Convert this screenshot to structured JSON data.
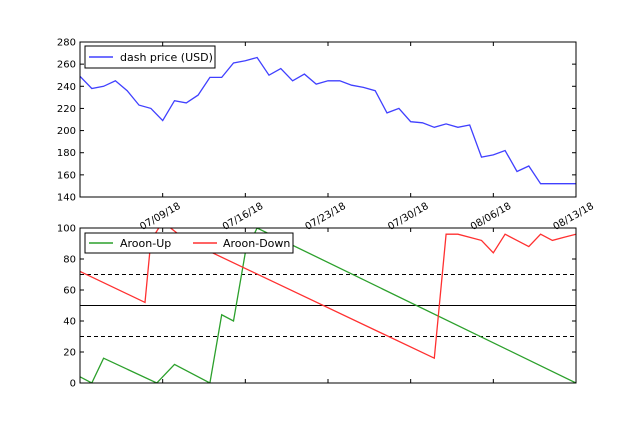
{
  "chart_data": [
    {
      "type": "line",
      "ylim": [
        140,
        280
      ],
      "yticks": [
        140,
        160,
        180,
        200,
        220,
        240,
        260,
        280
      ],
      "xlim": [
        "2018-07-02",
        "2018-08-13"
      ],
      "xticks": [
        "07/09/18",
        "07/16/18",
        "07/23/18",
        "07/30/18",
        "08/06/18",
        "08/13/18"
      ],
      "legend": "top-left",
      "grid": false,
      "series": [
        {
          "name": "dash price (USD)",
          "color": "#4040ff",
          "x": [
            "2018-07-02",
            "2018-07-03",
            "2018-07-04",
            "2018-07-05",
            "2018-07-06",
            "2018-07-07",
            "2018-07-08",
            "2018-07-09",
            "2018-07-10",
            "2018-07-11",
            "2018-07-12",
            "2018-07-13",
            "2018-07-14",
            "2018-07-15",
            "2018-07-16",
            "2018-07-17",
            "2018-07-18",
            "2018-07-19",
            "2018-07-20",
            "2018-07-21",
            "2018-07-22",
            "2018-07-23",
            "2018-07-24",
            "2018-07-25",
            "2018-07-26",
            "2018-07-27",
            "2018-07-28",
            "2018-07-29",
            "2018-07-30",
            "2018-07-31",
            "2018-08-01",
            "2018-08-02",
            "2018-08-03",
            "2018-08-04",
            "2018-08-05",
            "2018-08-06",
            "2018-08-07",
            "2018-08-08",
            "2018-08-09",
            "2018-08-10",
            "2018-08-11",
            "2018-08-12",
            "2018-08-13"
          ],
          "values": [
            249,
            238,
            240,
            245,
            236,
            223,
            220,
            209,
            227,
            225,
            232,
            248,
            248,
            261,
            263,
            266,
            250,
            256,
            245,
            251,
            242,
            245,
            245,
            241,
            239,
            236,
            216,
            220,
            208,
            207,
            203,
            206,
            203,
            205,
            176,
            178,
            182,
            163,
            168,
            152,
            152,
            152,
            152
          ]
        }
      ]
    },
    {
      "type": "line",
      "ylim": [
        0,
        100
      ],
      "yticks": [
        0,
        20,
        40,
        60,
        80,
        100
      ],
      "xlim": [
        "2018-07-02",
        "2018-08-13"
      ],
      "legend": "top-left",
      "grid": false,
      "reference_lines": [
        {
          "y": 70,
          "style": "dashed"
        },
        {
          "y": 50,
          "style": "solid"
        },
        {
          "y": 30,
          "style": "dashed"
        }
      ],
      "series": [
        {
          "name": "Aroon-Up",
          "color": "#2ca02c",
          "points": [
            [
              "2018-07-02",
              4
            ],
            [
              "2018-07-03",
              0
            ],
            [
              "2018-07-04",
              16
            ],
            [
              "2018-07-08.5",
              0
            ],
            [
              "2018-07-10",
              12
            ],
            [
              "2018-07-13",
              0
            ],
            [
              "2018-07-14",
              44
            ],
            [
              "2018-07-15",
              40
            ],
            [
              "2018-07-16",
              84
            ],
            [
              "2018-07-17",
              100
            ],
            [
              "2018-08-13",
              0
            ]
          ]
        },
        {
          "name": "Aroon-Down",
          "color": "#ff3030",
          "points": [
            [
              "2018-07-02",
              72
            ],
            [
              "2018-07-07.5",
              52
            ],
            [
              "2018-07-08",
              92
            ],
            [
              "2018-07-09",
              104
            ],
            [
              "2018-07-11",
              92
            ],
            [
              "2018-08-01",
              16
            ],
            [
              "2018-08-02",
              96
            ],
            [
              "2018-08-03",
              96
            ],
            [
              "2018-08-05",
              92
            ],
            [
              "2018-08-06",
              84
            ],
            [
              "2018-08-07",
              96
            ],
            [
              "2018-08-08",
              92
            ],
            [
              "2018-08-09",
              88
            ],
            [
              "2018-08-10",
              96
            ],
            [
              "2018-08-11",
              92
            ],
            [
              "2018-08-12",
              94
            ],
            [
              "2018-08-13",
              96
            ]
          ]
        }
      ]
    }
  ]
}
